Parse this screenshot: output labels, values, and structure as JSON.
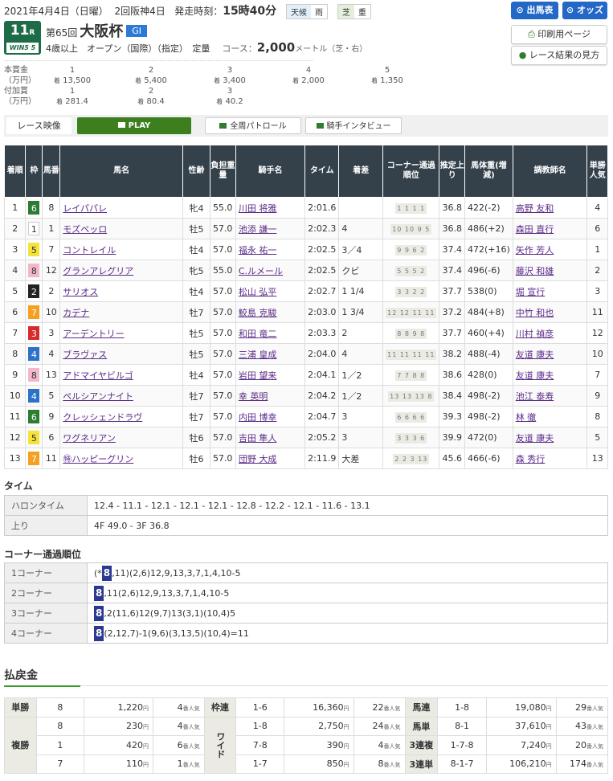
{
  "header": {
    "date": "2021年4月4日（日曜）",
    "meeting": "2回阪神4日",
    "post_label": "発走時刻：",
    "post_time": "15時40分",
    "weather_label": "天候",
    "weather": "雨",
    "track_label": "芝",
    "track_cond": "重",
    "race_no": "11",
    "race_suffix": "R",
    "win5": "WIN5",
    "win5_no": "5",
    "edition": "第65回",
    "race_name": "大阪杯",
    "grade": "GI",
    "conditions": "4歳以上　オープン（国際）（指定）　定量",
    "course_label": "コース：",
    "distance": "2,000",
    "course_unit": "メートル（芝・右）"
  },
  "prize": {
    "main_label": "本賞金（万円）",
    "main": [
      {
        "rank": "1",
        "unit": "着",
        "v": "13,500"
      },
      {
        "rank": "2",
        "unit": "着",
        "v": "5,400"
      },
      {
        "rank": "3",
        "unit": "着",
        "v": "3,400"
      },
      {
        "rank": "4",
        "unit": "着",
        "v": "2,000"
      },
      {
        "rank": "5",
        "unit": "着",
        "v": "1,350"
      }
    ],
    "add_label": "付加賞（万円）",
    "add": [
      {
        "rank": "1",
        "unit": "着",
        "v": "281.4"
      },
      {
        "rank": "2",
        "unit": "着",
        "v": "80.4"
      },
      {
        "rank": "3",
        "unit": "着",
        "v": "40.2"
      }
    ]
  },
  "buttons": {
    "entries": "出馬表",
    "odds": "オッズ",
    "print": "印刷用ページ",
    "guide": "レース結果の見方"
  },
  "video": {
    "label": "レース映像",
    "play": "PLAY",
    "patrol": "全周パトロール",
    "interview": "騎手インタビュー"
  },
  "table": {
    "headers": [
      "着順",
      "枠",
      "馬番",
      "馬名",
      "性齢",
      "負担重量",
      "騎手名",
      "タイム",
      "着差",
      "コーナー通過順位",
      "推定上り",
      "馬体重(増減)",
      "調教師名",
      "単勝人気"
    ],
    "rows": [
      [
        "1",
        "6",
        "8",
        "レイパパレ",
        "牝4",
        "55.0",
        "川田 将雅",
        "2:01.6",
        "",
        "1 1 1 1",
        "36.8",
        "422(-2)",
        "高野 友和",
        "4"
      ],
      [
        "2",
        "1",
        "1",
        "モズベッロ",
        "牡5",
        "57.0",
        "池添 謙一",
        "2:02.3",
        "4",
        "10 10 9 5",
        "36.8",
        "486(+2)",
        "森田 直行",
        "6"
      ],
      [
        "3",
        "5",
        "7",
        "コントレイル",
        "牡4",
        "57.0",
        "福永 祐一",
        "2:02.5",
        "3／4",
        "9 9 6 2",
        "37.4",
        "472(+16)",
        "矢作 芳人",
        "1"
      ],
      [
        "4",
        "8",
        "12",
        "グランアレグリア",
        "牝5",
        "55.0",
        "C.ルメール",
        "2:02.5",
        "クビ",
        "5 5 5 2",
        "37.4",
        "496(-6)",
        "藤沢 和雄",
        "2"
      ],
      [
        "5",
        "2",
        "2",
        "サリオス",
        "牡4",
        "57.0",
        "松山 弘平",
        "2:02.7",
        "1 1/4",
        "3 3 2 2",
        "37.7",
        "538(0)",
        "堀 宣行",
        "3"
      ],
      [
        "6",
        "7",
        "10",
        "カデナ",
        "牡7",
        "57.0",
        "鮫島 克駿",
        "2:03.0",
        "1 3/4",
        "12 12 11 11",
        "37.2",
        "484(+8)",
        "中竹 和也",
        "11"
      ],
      [
        "7",
        "3",
        "3",
        "アーデントリー",
        "牡5",
        "57.0",
        "和田 竜二",
        "2:03.3",
        "2",
        "8 8 9 8",
        "37.7",
        "460(+4)",
        "川村 禎彦",
        "12"
      ],
      [
        "8",
        "4",
        "4",
        "ブラヴァス",
        "牡5",
        "57.0",
        "三浦 皇成",
        "2:04.0",
        "4",
        "11 11 11 11",
        "38.2",
        "488(-4)",
        "友道 康夫",
        "10"
      ],
      [
        "9",
        "8",
        "13",
        "アドマイヤビルゴ",
        "牡4",
        "57.0",
        "岩田 望来",
        "2:04.1",
        "1／2",
        "7 7 8 8",
        "38.6",
        "428(0)",
        "友道 康夫",
        "7"
      ],
      [
        "10",
        "4",
        "5",
        "ペルシアンナイト",
        "牡7",
        "57.0",
        "幸 英明",
        "2:04.2",
        "1／2",
        "13 13 13 8",
        "38.4",
        "498(-2)",
        "池江 泰寿",
        "9"
      ],
      [
        "11",
        "6",
        "9",
        "クレッシェンドラヴ",
        "牡7",
        "57.0",
        "内田 博幸",
        "2:04.7",
        "3",
        "6 6 6 6",
        "39.3",
        "498(-2)",
        "林 徹",
        "8"
      ],
      [
        "12",
        "5",
        "6",
        "ワグネリアン",
        "牡6",
        "57.0",
        "吉田 隼人",
        "2:05.2",
        "3",
        "3 3 3 6",
        "39.9",
        "472(0)",
        "友道 康夫",
        "5"
      ],
      [
        "13",
        "7",
        "11",
        "㊕ハッピーグリン",
        "牡6",
        "57.0",
        "団野 大成",
        "2:11.9",
        "大差",
        "2 2 3 13",
        "45.6",
        "466(-6)",
        "森 秀行",
        "13"
      ]
    ]
  },
  "frame_colors": {
    "1": "#ffffff",
    "2": "#222222",
    "3": "#d62b2b",
    "4": "#2b72c8",
    "5": "#f5e23a",
    "6": "#2c7c32",
    "7": "#f5a020",
    "8": "#f2b8c9"
  },
  "time": {
    "title": "タイム",
    "rows": [
      {
        "k": "ハロンタイム",
        "v": "12.4 - 11.1 - 12.1 - 12.1 - 12.1 - 12.8 - 12.2 - 12.1 - 11.6 - 13.1"
      },
      {
        "k": "上り",
        "v": "4F 49.0 - 3F 36.8"
      }
    ]
  },
  "corners": {
    "title": "コーナー通過順位",
    "highlight": "8",
    "rows": [
      {
        "k": "1コーナー",
        "pre": "(*",
        "rest": ",11)(2,6)12,9,13,3,7,1,4,10-5"
      },
      {
        "k": "2コーナー",
        "pre": "",
        "rest": ",11(2,6)12,9,13,3,7,1,4,10-5"
      },
      {
        "k": "3コーナー",
        "pre": "",
        "rest": ",2(11,6)12(9,7)13(3,1)(10,4)5"
      },
      {
        "k": "4コーナー",
        "pre": "",
        "rest": "(2,12,7)-1(9,6)(3,13,5)(10,4)=11"
      }
    ]
  },
  "payout": {
    "title": "払戻金",
    "yen": "円",
    "pop": "番人気",
    "groups": [
      {
        "label": "単勝",
        "rows": [
          [
            "8",
            "1,220",
            "4"
          ]
        ]
      },
      {
        "label": "複勝",
        "rows": [
          [
            "8",
            "230",
            "4"
          ],
          [
            "1",
            "420",
            "6"
          ],
          [
            "7",
            "110",
            "1"
          ]
        ]
      },
      {
        "label": "枠連",
        "rows": [
          [
            "1-6",
            "16,360",
            "22"
          ]
        ]
      },
      {
        "label": "ワイド",
        "rows": [
          [
            "1-8",
            "2,750",
            "24"
          ],
          [
            "7-8",
            "390",
            "4"
          ],
          [
            "1-7",
            "850",
            "8"
          ]
        ]
      },
      {
        "label": "馬連",
        "rows": [
          [
            "1-8",
            "19,080",
            "29"
          ]
        ]
      },
      {
        "label": "馬単",
        "rows": [
          [
            "8-1",
            "37,610",
            "43"
          ]
        ]
      },
      {
        "label": "3連複",
        "rows": [
          [
            "1-7-8",
            "7,240",
            "20"
          ]
        ]
      },
      {
        "label": "3連単",
        "rows": [
          [
            "8-1-7",
            "106,210",
            "174"
          ]
        ]
      }
    ]
  }
}
